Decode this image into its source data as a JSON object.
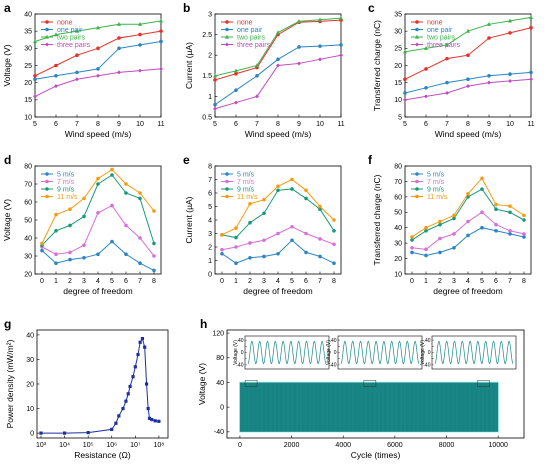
{
  "chart_data": [
    {
      "panel": "a",
      "type": "line",
      "xlabel": "Wind speed (m/s)",
      "ylabel": "Voltage (V)",
      "x": [
        5,
        6,
        7,
        8,
        9,
        10,
        11
      ],
      "xticks": [
        5,
        6,
        7,
        8,
        9,
        10,
        11
      ],
      "xlim": [
        5,
        11
      ],
      "ylim": [
        10,
        40
      ],
      "yticks": [
        10,
        15,
        20,
        25,
        30,
        35,
        40
      ],
      "legend_position": "top-left",
      "series": [
        {
          "name": "none",
          "color": "#e8302b",
          "marker": "circle",
          "values": [
            22,
            25,
            28,
            30,
            33,
            34,
            35
          ]
        },
        {
          "name": "one pair",
          "color": "#2c85c4",
          "marker": "circle",
          "values": [
            21,
            22,
            23,
            24,
            30,
            31,
            32
          ]
        },
        {
          "name": "two pairs",
          "color": "#3cb44b",
          "marker": "triangle",
          "values": [
            32,
            34,
            35,
            36,
            37,
            37,
            38
          ]
        },
        {
          "name": "three pairs",
          "color": "#c04cc0",
          "marker": "diamond",
          "values": [
            16,
            19,
            21,
            22,
            23,
            23.5,
            24
          ]
        }
      ]
    },
    {
      "panel": "b",
      "type": "line",
      "xlabel": "Wind speed (m/s)",
      "ylabel": "Current (µA)",
      "x": [
        5,
        6,
        7,
        8,
        9,
        10,
        11
      ],
      "xticks": [
        5,
        6,
        7,
        8,
        9,
        10,
        11
      ],
      "xlim": [
        5,
        11
      ],
      "ylim": [
        0.5,
        3.0
      ],
      "yticks": [
        0.5,
        1.0,
        1.5,
        2.0,
        2.5,
        3.0
      ],
      "legend_position": "top-left",
      "series": [
        {
          "name": "none",
          "color": "#e8302b",
          "marker": "circle",
          "values": [
            1.4,
            1.55,
            1.7,
            2.5,
            2.8,
            2.82,
            2.85
          ]
        },
        {
          "name": "one pair",
          "color": "#2c85c4",
          "marker": "circle",
          "values": [
            0.8,
            1.15,
            1.5,
            1.9,
            2.2,
            2.22,
            2.25
          ]
        },
        {
          "name": "two pairs",
          "color": "#3cb44b",
          "marker": "triangle",
          "values": [
            1.5,
            1.62,
            1.75,
            2.55,
            2.82,
            2.86,
            2.9
          ]
        },
        {
          "name": "three pairs",
          "color": "#c04cc0",
          "marker": "diamond",
          "values": [
            0.7,
            0.85,
            1.0,
            1.75,
            1.8,
            1.9,
            2.0
          ]
        }
      ]
    },
    {
      "panel": "c",
      "type": "line",
      "xlabel": "Wind speed (m/s)",
      "ylabel": "Transferred charge (nC)",
      "x": [
        5,
        6,
        7,
        8,
        9,
        10,
        11
      ],
      "xticks": [
        5,
        6,
        7,
        8,
        9,
        10,
        11
      ],
      "xlim": [
        5,
        11
      ],
      "ylim": [
        5,
        35
      ],
      "yticks": [
        5,
        10,
        15,
        20,
        25,
        30,
        35
      ],
      "legend_position": "top-left",
      "series": [
        {
          "name": "none",
          "color": "#e8302b",
          "marker": "circle",
          "values": [
            16,
            19,
            22,
            23,
            28,
            29.5,
            31
          ]
        },
        {
          "name": "one pair",
          "color": "#2c85c4",
          "marker": "circle",
          "values": [
            12,
            13.5,
            15,
            16,
            17,
            17.5,
            18
          ]
        },
        {
          "name": "two pairs",
          "color": "#3cb44b",
          "marker": "triangle",
          "values": [
            24,
            25,
            26,
            30,
            32,
            33,
            34
          ]
        },
        {
          "name": "three pairs",
          "color": "#c04cc0",
          "marker": "diamond",
          "values": [
            10,
            11,
            12,
            14,
            15,
            15.5,
            16
          ]
        }
      ]
    },
    {
      "panel": "d",
      "type": "line",
      "xlabel": "degree of freedom",
      "ylabel": "Voltage (V)",
      "x": [
        0,
        1,
        2,
        3,
        4,
        5,
        6,
        7,
        8
      ],
      "xticks": [
        0,
        1,
        2,
        3,
        4,
        5,
        6,
        7,
        8
      ],
      "xlim": [
        -0.5,
        8.5
      ],
      "ylim": [
        20,
        80
      ],
      "yticks": [
        20,
        30,
        40,
        50,
        60,
        70,
        80
      ],
      "legend_position": "top-left",
      "series": [
        {
          "name": "5 m/s",
          "color": "#2c85c4",
          "marker": "circle",
          "values": [
            33,
            26,
            28,
            29,
            31,
            38,
            31,
            26,
            22
          ]
        },
        {
          "name": "7 m/s",
          "color": "#d86fd8",
          "marker": "circle",
          "values": [
            35,
            31,
            32,
            36,
            54,
            58,
            47,
            40,
            30
          ]
        },
        {
          "name": "9 m/s",
          "color": "#179a7a",
          "marker": "circle",
          "values": [
            36,
            44,
            47,
            52,
            70,
            75,
            65,
            62,
            37
          ]
        },
        {
          "name": "11 m/s",
          "color": "#f39c12",
          "marker": "circle",
          "values": [
            37,
            53,
            56,
            62,
            73,
            78,
            70,
            65,
            55
          ]
        }
      ]
    },
    {
      "panel": "e",
      "type": "line",
      "xlabel": "degree of freedom",
      "ylabel": "Current (µA)",
      "x": [
        0,
        1,
        2,
        3,
        4,
        5,
        6,
        7,
        8
      ],
      "xticks": [
        0,
        1,
        2,
        3,
        4,
        5,
        6,
        7,
        8
      ],
      "xlim": [
        -0.5,
        8.5
      ],
      "ylim": [
        0,
        8
      ],
      "yticks": [
        0,
        1,
        2,
        3,
        4,
        5,
        6,
        7,
        8
      ],
      "legend_position": "top-left",
      "series": [
        {
          "name": "5 m/s",
          "color": "#2c85c4",
          "marker": "circle",
          "values": [
            1.5,
            0.8,
            1.2,
            1.3,
            1.5,
            2.5,
            1.6,
            1.3,
            0.8
          ]
        },
        {
          "name": "7 m/s",
          "color": "#d86fd8",
          "marker": "circle",
          "values": [
            1.8,
            2.0,
            2.3,
            2.5,
            3.0,
            3.5,
            3.0,
            2.6,
            2.2
          ]
        },
        {
          "name": "9 m/s",
          "color": "#179a7a",
          "marker": "circle",
          "values": [
            2.9,
            2.7,
            3.8,
            4.5,
            6.2,
            6.3,
            5.6,
            4.8,
            3.2
          ]
        },
        {
          "name": "11 m/s",
          "color": "#f39c12",
          "marker": "circle",
          "values": [
            2.9,
            3.4,
            5.2,
            5.5,
            6.5,
            7.0,
            6.2,
            5.0,
            4.0
          ]
        }
      ]
    },
    {
      "panel": "f",
      "type": "line",
      "xlabel": "degree of freedom",
      "ylabel": "Transferred charge (nC)",
      "x": [
        0,
        1,
        2,
        3,
        4,
        5,
        6,
        7,
        8
      ],
      "xticks": [
        0,
        1,
        2,
        3,
        4,
        5,
        6,
        7,
        8
      ],
      "xlim": [
        -0.5,
        8.5
      ],
      "ylim": [
        10,
        80
      ],
      "yticks": [
        10,
        20,
        30,
        40,
        50,
        60,
        70,
        80
      ],
      "legend_position": "top-left",
      "series": [
        {
          "name": "5 m/s",
          "color": "#2c85c4",
          "marker": "circle",
          "values": [
            24,
            22,
            24,
            27,
            35,
            40,
            38,
            36,
            34
          ]
        },
        {
          "name": "7 m/s",
          "color": "#d86fd8",
          "marker": "circle",
          "values": [
            27,
            26,
            33,
            36,
            44,
            50,
            42,
            38,
            36
          ]
        },
        {
          "name": "9 m/s",
          "color": "#179a7a",
          "marker": "circle",
          "values": [
            32,
            38,
            42,
            46,
            60,
            65,
            52,
            50,
            45
          ]
        },
        {
          "name": "11 m/s",
          "color": "#f39c12",
          "marker": "circle",
          "values": [
            34,
            40,
            44,
            48,
            62,
            72,
            55,
            54,
            48
          ]
        }
      ]
    },
    {
      "panel": "g",
      "type": "line",
      "xlabel": "Resistance (Ω)",
      "ylabel": "Power density (mW/m²)",
      "x_scale": "log",
      "xlim": [
        1000,
        200000000
      ],
      "xtick_labels": [
        "10³",
        "10⁴",
        "10⁵",
        "10⁶",
        "10⁷",
        "10⁸"
      ],
      "xticks": [
        1000,
        10000,
        100000,
        1000000,
        10000000,
        100000000
      ],
      "ylim": [
        -2,
        42
      ],
      "yticks": [
        0,
        10,
        20,
        30,
        40
      ],
      "series": [
        {
          "name": "",
          "color": "#1f2fa0",
          "marker": "square",
          "x": [
            1000,
            10000,
            100000,
            1000000,
            1500000,
            2000000,
            3000000,
            4000000,
            5000000,
            6000000,
            8000000,
            10000000,
            13000000,
            16000000,
            20000000,
            25000000,
            30000000,
            35000000,
            40000000,
            50000000,
            70000000,
            100000000
          ],
          "values": [
            0,
            0,
            0.2,
            1.5,
            4,
            7,
            10,
            13,
            16,
            19,
            23,
            27,
            32,
            37,
            38.5,
            35,
            20,
            10,
            6,
            5.5,
            5,
            4.8
          ]
        }
      ]
    },
    {
      "panel": "h",
      "type": "line",
      "xlabel": "Cycle (times)",
      "ylabel": "Voltage (V)",
      "xlim": [
        -500,
        11000
      ],
      "xticks": [
        0,
        2000,
        4000,
        6000,
        8000,
        10000
      ],
      "ylim": [
        -50,
        125
      ],
      "yticks": [
        -40,
        0,
        40,
        80,
        120
      ],
      "signal": {
        "color": "#1a8a88",
        "min": -40,
        "max": 40,
        "x_start": 0,
        "x_end": 10000
      },
      "inset_ylabel": "Voltage (V)",
      "inset_yticks": [
        40,
        20,
        0,
        -20,
        -40
      ]
    }
  ]
}
